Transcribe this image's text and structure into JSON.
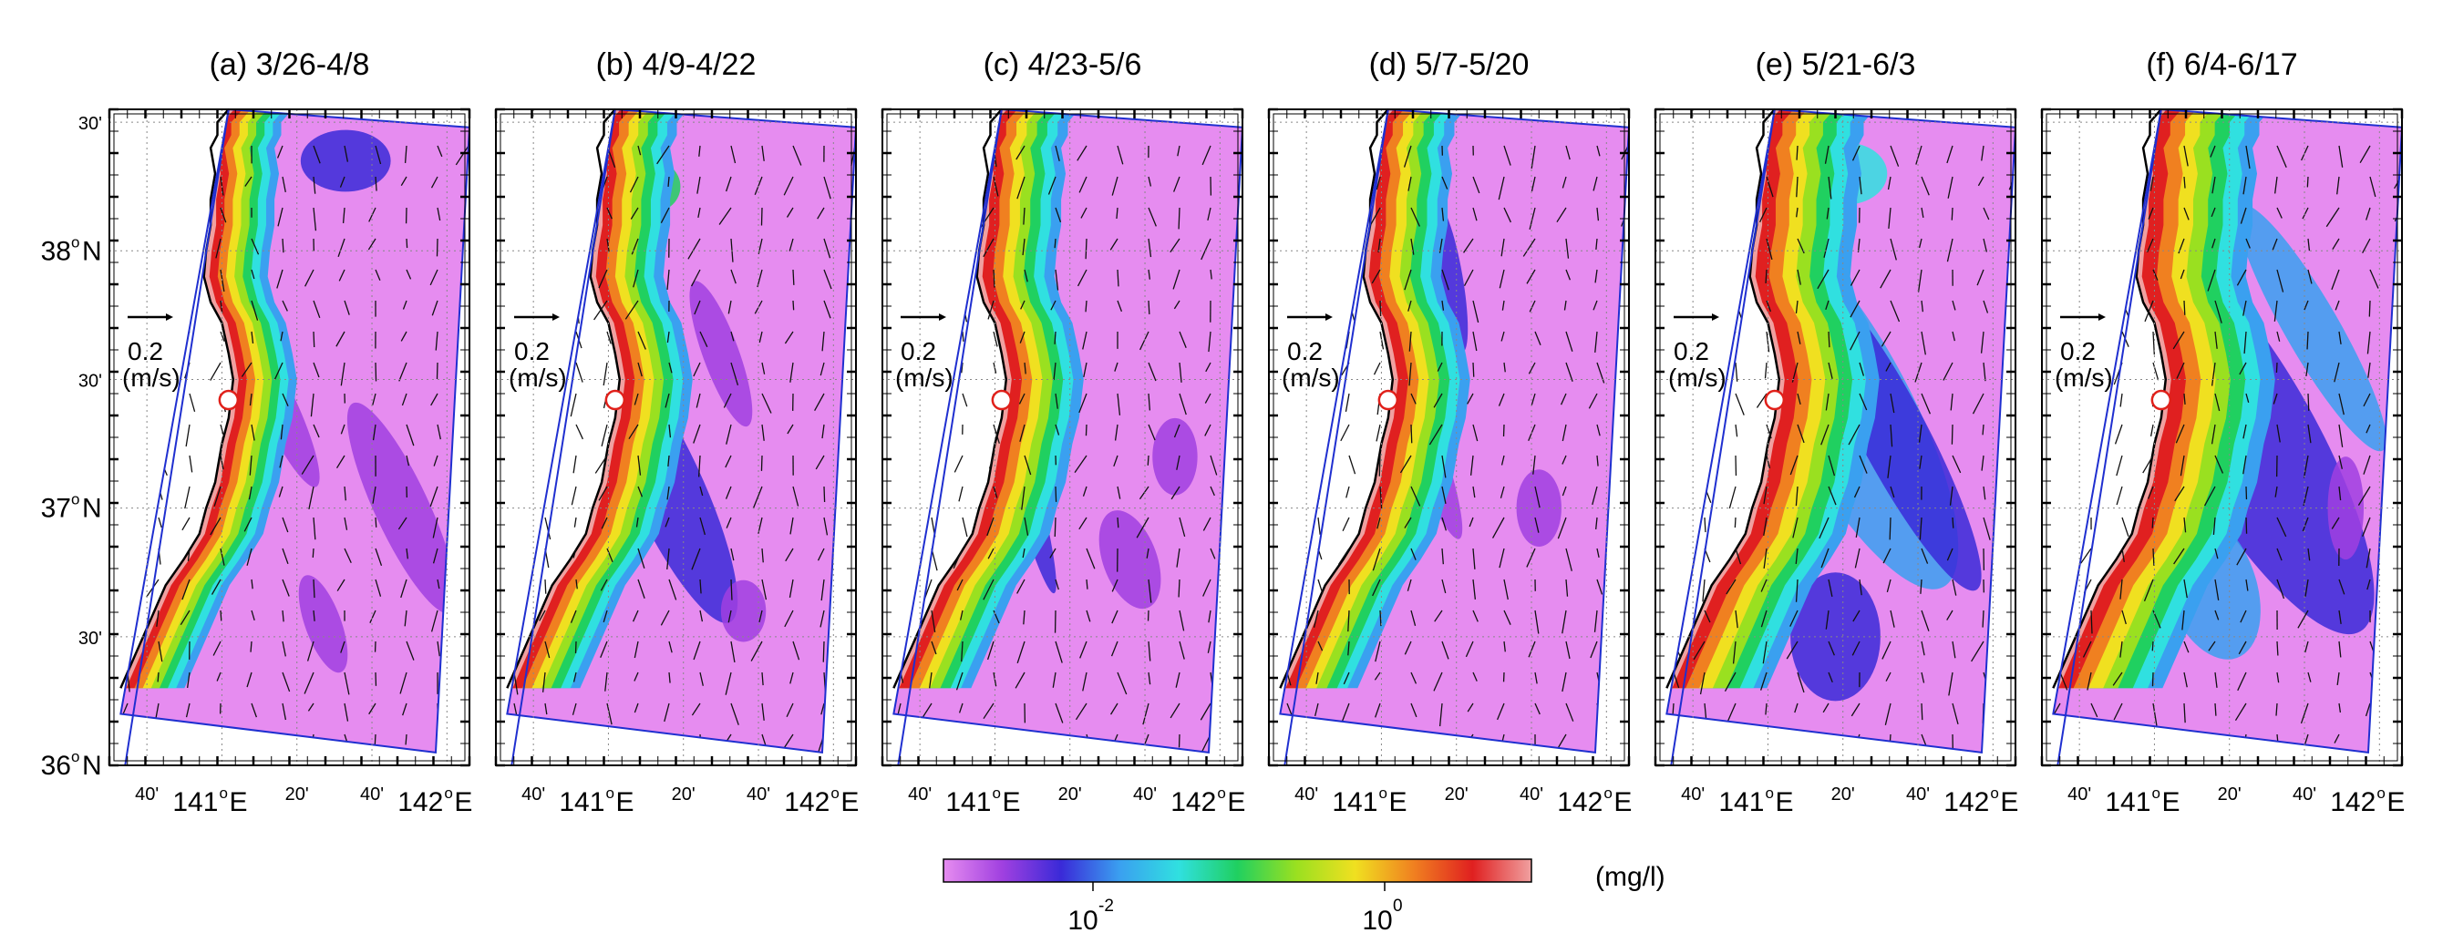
{
  "figure": {
    "panels": [
      {
        "id": "a",
        "title": "(a) 3/26-4/8"
      },
      {
        "id": "b",
        "title": "(b) 4/9-4/22"
      },
      {
        "id": "c",
        "title": "(c) 4/23-5/6"
      },
      {
        "id": "d",
        "title": "(d) 5/7-5/20"
      },
      {
        "id": "e",
        "title": "(e) 5/21-6/3"
      },
      {
        "id": "f",
        "title": "(f) 6/4-6/17"
      }
    ],
    "lat_labels": [
      {
        "lat": 38.5,
        "deg": "",
        "min": "30'"
      },
      {
        "lat": 38.0,
        "deg": "38",
        "min": ""
      },
      {
        "lat": 37.5,
        "deg": "",
        "min": "30'"
      },
      {
        "lat": 37.0,
        "deg": "37",
        "min": ""
      },
      {
        "lat": 36.5,
        "deg": "",
        "min": "30'"
      },
      {
        "lat": 36.0,
        "deg": "36",
        "min": ""
      }
    ],
    "lat_hemisphere": "N",
    "lon_labels": [
      {
        "lon": 140.6667,
        "deg": "",
        "min": "40'"
      },
      {
        "lon": 141.0,
        "deg": "141",
        "min": ""
      },
      {
        "lon": 141.3333,
        "deg": "",
        "min": "20'"
      },
      {
        "lon": 141.6667,
        "deg": "",
        "min": "40'"
      },
      {
        "lon": 142.0,
        "deg": "142",
        "min": ""
      }
    ],
    "lon_hemisphere": "E",
    "degree_symbol": "o",
    "scale_vector": {
      "value": "0.2",
      "unit": "(m/s)"
    },
    "colorbar": {
      "unit": "(mg/l)",
      "scale": "log",
      "tick_labels": [
        {
          "base": "10",
          "exponent": "-2"
        },
        {
          "base": "10",
          "exponent": "0"
        }
      ]
    },
    "colors": {
      "land_coast": "#000000",
      "domain_outline": "#1f2fd0",
      "marker_stroke": "#e0201a",
      "grid": "#888888",
      "colormap": [
        "#e68cf0",
        "#a040e0",
        "#3a2ad8",
        "#3aa0f0",
        "#30e0e0",
        "#20d060",
        "#9ae020",
        "#f0e020",
        "#f08020",
        "#e02020",
        "#f0a0a0"
      ]
    }
  }
}
